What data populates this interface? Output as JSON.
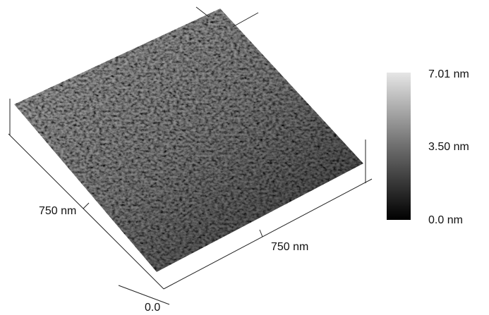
{
  "colorbar": {
    "max_label": "7.01 nm",
    "mid_label": "3.50 nm",
    "min_label": "0.0 nm"
  },
  "axes": {
    "left_label": "750 nm",
    "right_label": "750 nm",
    "origin_label": "0.0"
  }
}
